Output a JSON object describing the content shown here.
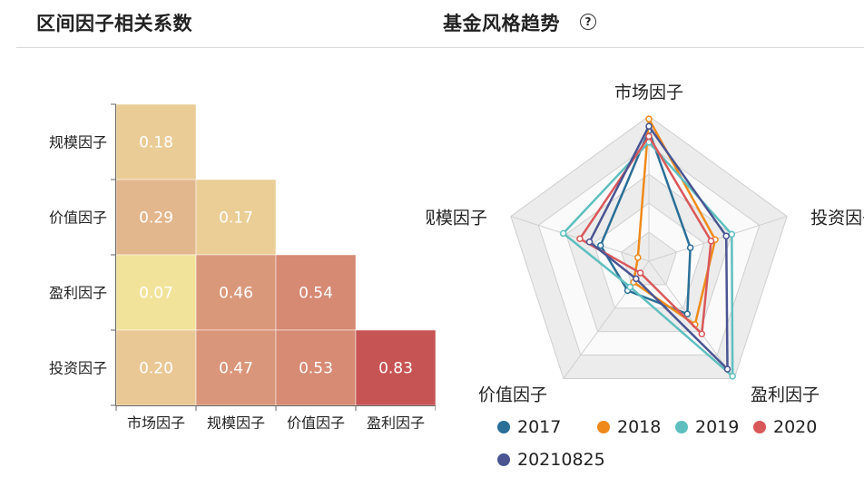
{
  "header": {
    "left_title": "区间因子相关系数",
    "right_title": "基金风格趋势",
    "help_icon": "question-circle-icon"
  },
  "chart_data": [
    {
      "type": "heatmap",
      "title": "区间因子相关系数",
      "x_categories": [
        "市场因子",
        "规模因子",
        "价值因子",
        "盈利因子"
      ],
      "y_categories": [
        "规模因子",
        "价值因子",
        "盈利因子",
        "投资因子"
      ],
      "cells": [
        {
          "row": 0,
          "col": 0,
          "value": 0.18,
          "label": "0.18"
        },
        {
          "row": 1,
          "col": 0,
          "value": 0.29,
          "label": "0.29"
        },
        {
          "row": 1,
          "col": 1,
          "value": 0.17,
          "label": "0.17"
        },
        {
          "row": 2,
          "col": 0,
          "value": 0.07,
          "label": "0.07"
        },
        {
          "row": 2,
          "col": 1,
          "value": 0.46,
          "label": "0.46"
        },
        {
          "row": 2,
          "col": 2,
          "value": 0.54,
          "label": "0.54"
        },
        {
          "row": 3,
          "col": 0,
          "value": 0.2,
          "label": "0.20"
        },
        {
          "row": 3,
          "col": 1,
          "value": 0.47,
          "label": "0.47"
        },
        {
          "row": 3,
          "col": 2,
          "value": 0.53,
          "label": "0.53"
        },
        {
          "row": 3,
          "col": 3,
          "value": 0.83,
          "label": "0.83"
        }
      ],
      "color_scale": {
        "min": 0.07,
        "max": 0.83,
        "low": "#f2e39b",
        "mid": "#e7c394",
        "high": "#c75454"
      }
    },
    {
      "type": "radar",
      "title": "基金风格趋势",
      "indicators": [
        "市场因子",
        "投资因子",
        "盈利因子",
        "价值因子",
        "规模因子"
      ],
      "max": 1,
      "series": [
        {
          "name": "2017",
          "color": "#2a6f97",
          "values": [
            0.9,
            0.3,
            0.45,
            0.25,
            0.35
          ]
        },
        {
          "name": "2018",
          "color": "#ef8a1a",
          "values": [
            0.98,
            0.48,
            0.54,
            0.18,
            0.08
          ]
        },
        {
          "name": "2019",
          "color": "#5fbfbf",
          "values": [
            0.82,
            0.6,
            0.98,
            0.22,
            0.62
          ]
        },
        {
          "name": "2020",
          "color": "#d9585a",
          "values": [
            0.86,
            0.45,
            0.62,
            0.1,
            0.5
          ]
        },
        {
          "name": "20210825",
          "color": "#4a5592",
          "values": [
            0.93,
            0.56,
            0.92,
            0.15,
            0.43
          ]
        }
      ]
    }
  ]
}
